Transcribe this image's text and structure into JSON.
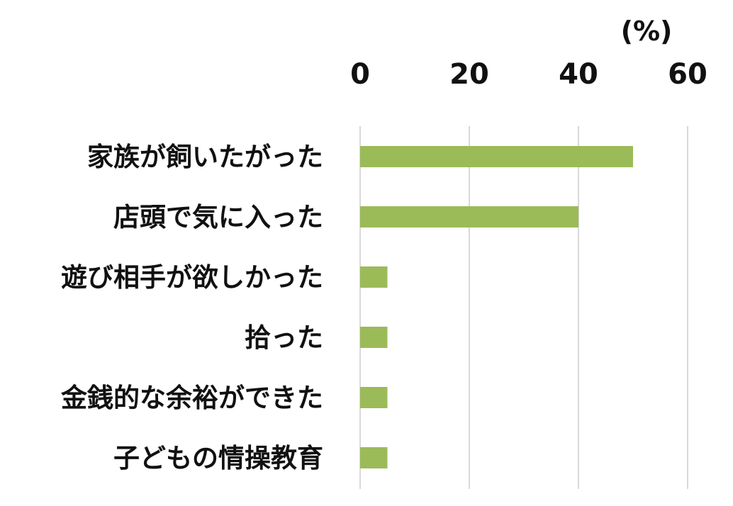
{
  "chart_data": {
    "type": "bar",
    "orientation": "horizontal",
    "unit_label": "(%)",
    "xlim": [
      0,
      60
    ],
    "xticks": [
      0,
      20,
      40,
      60
    ],
    "x_axis_position": "top",
    "grid": true,
    "bar_color": "#9BBB59",
    "categories": [
      "家族が飼いたがった",
      "店頭で気に入った",
      "遊び相手が欲しかった",
      "拾った",
      "金銭的な余裕ができた",
      "子どもの情操教育"
    ],
    "values": [
      50,
      40,
      5,
      5,
      5,
      5
    ]
  }
}
